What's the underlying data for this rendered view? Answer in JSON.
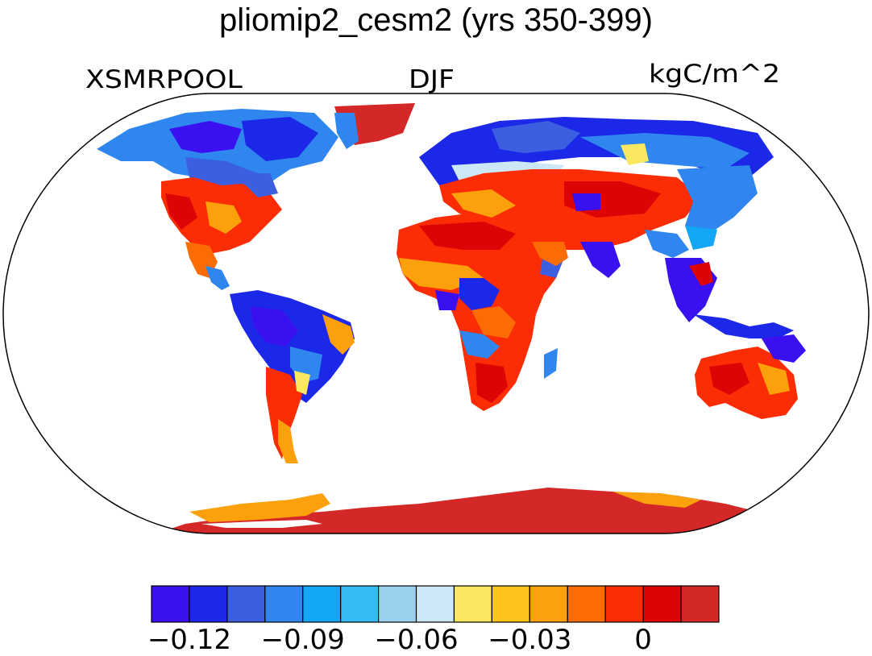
{
  "title": "pliomip2_cesm2 (yrs 350-399)",
  "variable_label": "XSMRPOOL",
  "season_label": "DJF",
  "units_label": "kgC/m^2",
  "colorbar": {
    "colors": [
      "#3a10f0",
      "#1c28e8",
      "#3c5ee0",
      "#2e86ee",
      "#12a6f4",
      "#34bcf2",
      "#9ad0ee",
      "#cce8f6",
      "#fce860",
      "#fcc41c",
      "#fca00c",
      "#fc6c04",
      "#fc2c04",
      "#dc0404",
      "#d42828"
    ],
    "tick_labels": [
      "−0.12",
      "−0.09",
      "−0.06",
      "−0.03",
      "0"
    ]
  }
}
